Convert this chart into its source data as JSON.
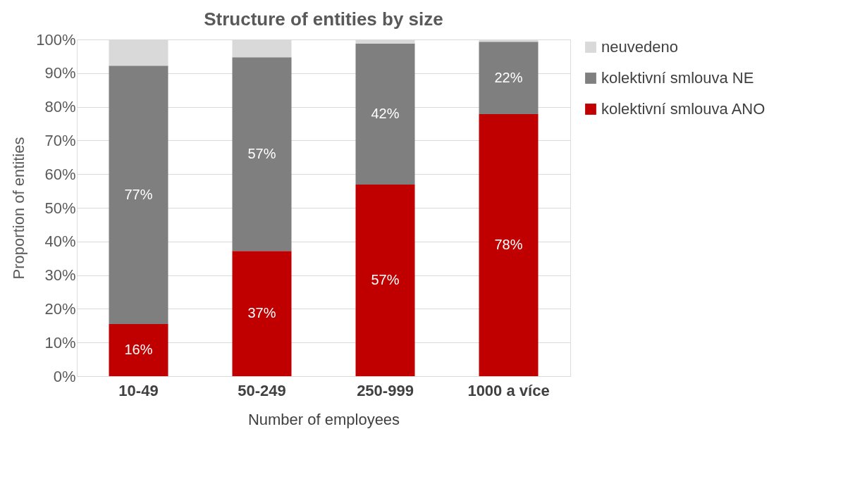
{
  "chart_data": {
    "type": "bar",
    "stacked": true,
    "title": "Structure of entities by size",
    "xlabel": "Number of employees",
    "ylabel": "Proportion of entities",
    "categories": [
      "10-49",
      "50-249",
      "250-999",
      "1000 a více"
    ],
    "series": [
      {
        "name": "kolektivní smlouva ANO",
        "color": "#c00000",
        "values": [
          15.5,
          37.2,
          56.9,
          77.8
        ],
        "value_labels": [
          "16%",
          "37%",
          "57%",
          "78%"
        ]
      },
      {
        "name": "kolektivní smlouva NE",
        "color": "#7f7f7f",
        "values": [
          76.7,
          57.5,
          41.9,
          21.5
        ],
        "value_labels": [
          "77%",
          "57%",
          "42%",
          "22%"
        ]
      },
      {
        "name": "neuvedeno",
        "color": "#d9d9d9",
        "values": [
          7.8,
          5.3,
          1.2,
          0.7
        ],
        "value_labels": [
          null,
          null,
          null,
          null
        ]
      }
    ],
    "ylim": [
      0,
      100
    ],
    "yticks": [
      {
        "value": 0,
        "label": "0%"
      },
      {
        "value": 10,
        "label": "10%"
      },
      {
        "value": 20,
        "label": "20%"
      },
      {
        "value": 30,
        "label": "30%"
      },
      {
        "value": 40,
        "label": "40%"
      },
      {
        "value": 50,
        "label": "50%"
      },
      {
        "value": 60,
        "label": "60%"
      },
      {
        "value": 70,
        "label": "70%"
      },
      {
        "value": 80,
        "label": "80%"
      },
      {
        "value": 90,
        "label": "90%"
      },
      {
        "value": 100,
        "label": "100%"
      }
    ],
    "grid": "y",
    "legend": "right"
  }
}
